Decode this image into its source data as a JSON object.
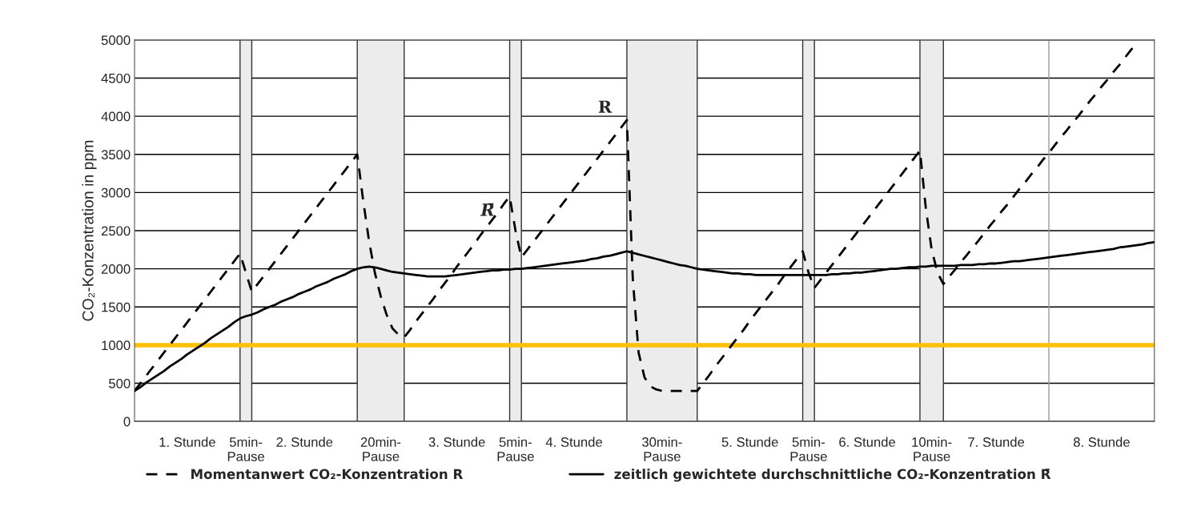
{
  "chart_data": {
    "type": "line",
    "ylabel": "CO₂-Konzentration in ppm",
    "categories": [
      null,
      null,
      null,
      null,
      null,
      null,
      null,
      null,
      null,
      "1. Stunde",
      null,
      null,
      null,
      null,
      null,
      null,
      null,
      null,
      null,
      "5min-\nPause",
      null,
      null,
      null,
      null,
      null,
      null,
      null,
      null,
      null,
      "2. Stunde",
      null,
      null,
      null,
      null,
      null,
      null,
      null,
      null,
      null,
      null,
      null,
      null,
      "20min-\nPause",
      null,
      null,
      null,
      null,
      null,
      null,
      null,
      null,
      null,
      null,
      null,
      null,
      "3. Stunde",
      null,
      null,
      null,
      null,
      null,
      null,
      null,
      null,
      null,
      "5min-\nPause",
      null,
      null,
      null,
      null,
      null,
      null,
      null,
      null,
      null,
      "4. Stunde",
      null,
      null,
      null,
      null,
      null,
      null,
      null,
      null,
      null,
      null,
      null,
      null,
      null,
      null,
      "30min-\nPause",
      null,
      null,
      null,
      null,
      null,
      null,
      null,
      null,
      null,
      null,
      null,
      null,
      null,
      null,
      "5. Stunde",
      null,
      null,
      null,
      null,
      null,
      null,
      null,
      null,
      null,
      "5min-\nPause",
      null,
      null,
      null,
      null,
      null,
      null,
      null,
      null,
      null,
      "6. Stunde",
      null,
      null,
      null,
      null,
      null,
      null,
      null,
      null,
      null,
      null,
      "10min-\nPause",
      null,
      null,
      null,
      null,
      null,
      null,
      null,
      null,
      null,
      null,
      "7. Stunde",
      null,
      null,
      null,
      null,
      null,
      null,
      null,
      null,
      null,
      null,
      null,
      null,
      null,
      null,
      null,
      null,
      null,
      "8. Stunde",
      null,
      null,
      null,
      null,
      null,
      null,
      null,
      null,
      null
    ],
    "ylim": [
      0,
      5000
    ],
    "yticks": [
      0,
      500,
      1000,
      1500,
      2000,
      2500,
      3000,
      3500,
      4000,
      4500,
      5000
    ],
    "grid": "y",
    "legend": "bottom",
    "series": [
      {
        "name": "Momentanwert CO₂-Konzentration R",
        "color": "#000000",
        "line_style": "dashed",
        "values": [
          400,
          500,
          600,
          700,
          800,
          900,
          1000,
          1100,
          1200,
          1300,
          1400,
          1500,
          1600,
          1700,
          1800,
          1900,
          2000,
          2100,
          2200,
          1950,
          1700,
          1800,
          1900,
          2000,
          2100,
          2200,
          2300,
          2400,
          2500,
          2600,
          2700,
          2800,
          2900,
          3000,
          3100,
          3200,
          3300,
          3400,
          3500,
          2900,
          2370,
          1950,
          1640,
          1400,
          1220,
          1140,
          1100,
          1200,
          1310,
          1410,
          1510,
          1610,
          1720,
          1820,
          1920,
          2030,
          2130,
          2230,
          2330,
          2440,
          2540,
          2640,
          2740,
          2850,
          2950,
          2500,
          2150,
          2250,
          2350,
          2450,
          2550,
          2650,
          2750,
          2850,
          2950,
          3050,
          3150,
          3250,
          3350,
          3450,
          3550,
          3650,
          3750,
          3850,
          3950,
          1880,
          900,
          580,
          460,
          420,
          400,
          400,
          400,
          400,
          400,
          400,
          400,
          500,
          600,
          710,
          810,
          910,
          1010,
          1110,
          1210,
          1320,
          1420,
          1520,
          1620,
          1720,
          1820,
          1930,
          2030,
          2130,
          2230,
          1950,
          1750,
          1850,
          1950,
          2050,
          2150,
          2250,
          2350,
          2450,
          2550,
          2650,
          2750,
          2850,
          2950,
          3050,
          3150,
          3250,
          3350,
          3450,
          3550,
          2800,
          2250,
          1950,
          1800,
          1900,
          1990,
          2090,
          2180,
          2280,
          2370,
          2470,
          2570,
          2660,
          2760,
          2850,
          2950,
          3050,
          3140,
          3240,
          3330,
          3430,
          3520,
          3620,
          3720,
          3810,
          3910,
          4000,
          4100,
          4200,
          4290,
          4390,
          4480,
          4580,
          4670,
          4770,
          4870,
          4960,
          null,
          null,
          null
        ]
      },
      {
        "name": "zeitlich gewichtete durchschnittliche CO₂-Konzentration R̄",
        "color": "#000000",
        "line_style": "solid",
        "values": [
          400,
          450,
          510,
          560,
          610,
          660,
          720,
          770,
          820,
          880,
          930,
          980,
          1030,
          1090,
          1140,
          1190,
          1240,
          1300,
          1350,
          1380,
          1400,
          1430,
          1470,
          1500,
          1530,
          1570,
          1600,
          1630,
          1670,
          1700,
          1730,
          1770,
          1800,
          1830,
          1870,
          1900,
          1930,
          1970,
          2000,
          2020,
          2030,
          2020,
          2000,
          1980,
          1960,
          1950,
          1940,
          1930,
          1920,
          1910,
          1900,
          1900,
          1900,
          1900,
          1910,
          1920,
          1930,
          1940,
          1950,
          1960,
          1970,
          1980,
          1980,
          1990,
          1990,
          2000,
          2000,
          2010,
          2020,
          2030,
          2040,
          2050,
          2060,
          2070,
          2080,
          2090,
          2100,
          2110,
          2130,
          2140,
          2160,
          2170,
          2190,
          2210,
          2230,
          2210,
          2190,
          2170,
          2150,
          2130,
          2110,
          2090,
          2070,
          2050,
          2040,
          2020,
          2000,
          1990,
          1980,
          1970,
          1960,
          1950,
          1940,
          1940,
          1930,
          1930,
          1920,
          1920,
          1920,
          1920,
          1920,
          1920,
          1920,
          1920,
          1920,
          1920,
          1920,
          1920,
          1920,
          1930,
          1930,
          1940,
          1940,
          1950,
          1950,
          1960,
          1970,
          1980,
          1990,
          2000,
          2000,
          2010,
          2020,
          2020,
          2030,
          2030,
          2040,
          2040,
          2040,
          2040,
          2040,
          2050,
          2050,
          2050,
          2060,
          2060,
          2070,
          2070,
          2080,
          2090,
          2100,
          2100,
          2110,
          2120,
          2130,
          2140,
          2150,
          2160,
          2170,
          2180,
          2190,
          2200,
          2210,
          2220,
          2230,
          2240,
          2250,
          2260,
          2280,
          2290,
          2300,
          2310,
          2320,
          2340,
          2350
        ]
      }
    ],
    "ref_lines": [
      {
        "axis": "y",
        "value": 1000,
        "color": "#ffc000"
      }
    ],
    "annotations": [
      "R",
      "R̄"
    ]
  }
}
